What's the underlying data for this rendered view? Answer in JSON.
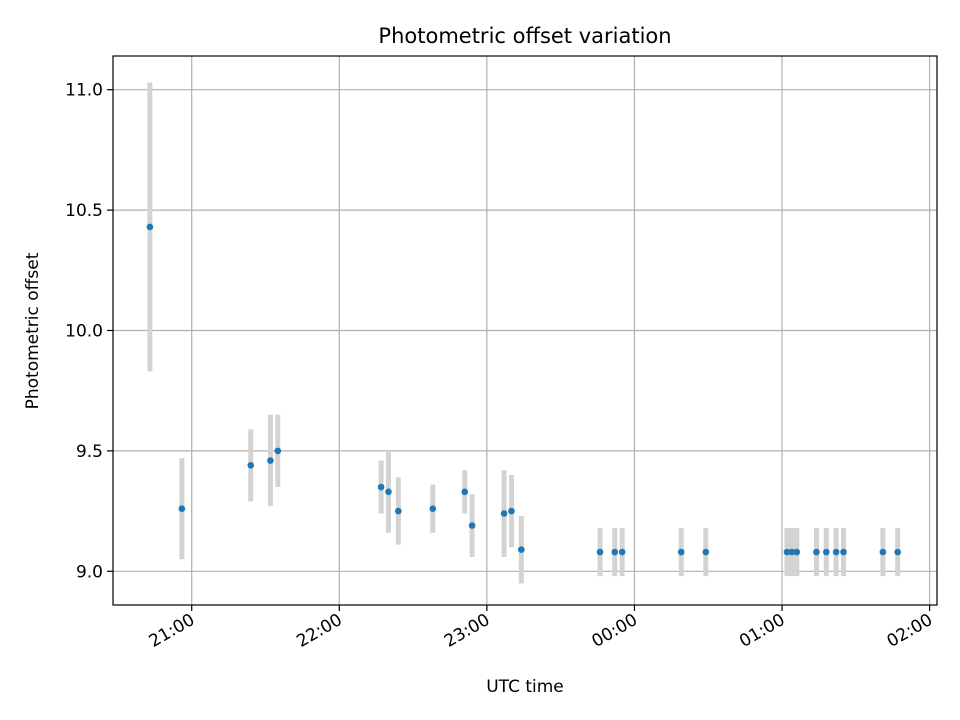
{
  "chart_data": {
    "type": "scatter",
    "title": "Photometric offset variation",
    "xlabel": "UTC time",
    "ylabel": "Photometric offset",
    "x_axis_type": "time",
    "x_reference_date": "",
    "xlim": [
      "20:28",
      "26:03"
    ],
    "ylim": [
      8.86,
      11.14
    ],
    "x_ticks": [
      "21:00",
      "22:00",
      "23:00",
      "00:00",
      "01:00",
      "02:00"
    ],
    "y_ticks": [
      9.0,
      9.5,
      10.0,
      10.5,
      11.0
    ],
    "y_tick_labels": [
      "9.0",
      "9.5",
      "10.0",
      "10.5",
      "11.0"
    ],
    "grid": true,
    "point_color": "#1f77b4",
    "errorbar_color": "#d3d3d3",
    "series": [
      {
        "points": [
          {
            "t": "20:43",
            "y": 10.43,
            "err": 0.6
          },
          {
            "t": "20:56",
            "y": 9.26,
            "err": 0.21
          },
          {
            "t": "21:24",
            "y": 9.44,
            "err": 0.15
          },
          {
            "t": "21:32",
            "y": 9.46,
            "err": 0.19
          },
          {
            "t": "21:35",
            "y": 9.5,
            "err": 0.15
          },
          {
            "t": "22:17",
            "y": 9.35,
            "err": 0.11
          },
          {
            "t": "22:20",
            "y": 9.33,
            "err": 0.17
          },
          {
            "t": "22:24",
            "y": 9.25,
            "err": 0.14
          },
          {
            "t": "22:38",
            "y": 9.26,
            "err": 0.1
          },
          {
            "t": "22:51",
            "y": 9.33,
            "err": 0.09
          },
          {
            "t": "22:54",
            "y": 9.19,
            "err": 0.13
          },
          {
            "t": "23:07",
            "y": 9.24,
            "err": 0.18
          },
          {
            "t": "23:10",
            "y": 9.25,
            "err": 0.15
          },
          {
            "t": "23:14",
            "y": 9.09,
            "err": 0.14
          },
          {
            "t": "23:46",
            "y": 9.08,
            "err": 0.1
          },
          {
            "t": "23:52",
            "y": 9.08,
            "err": 0.1
          },
          {
            "t": "23:55",
            "y": 9.08,
            "err": 0.1
          },
          {
            "t": "24:19",
            "y": 9.08,
            "err": 0.1
          },
          {
            "t": "24:29",
            "y": 9.08,
            "err": 0.1
          },
          {
            "t": "25:02",
            "y": 9.08,
            "err": 0.1
          },
          {
            "t": "25:04",
            "y": 9.08,
            "err": 0.1
          },
          {
            "t": "25:06",
            "y": 9.08,
            "err": 0.1
          },
          {
            "t": "25:14",
            "y": 9.08,
            "err": 0.1
          },
          {
            "t": "25:18",
            "y": 9.08,
            "err": 0.1
          },
          {
            "t": "25:22",
            "y": 9.08,
            "err": 0.1
          },
          {
            "t": "25:25",
            "y": 9.08,
            "err": 0.1
          },
          {
            "t": "25:41",
            "y": 9.08,
            "err": 0.1
          },
          {
            "t": "25:47",
            "y": 9.08,
            "err": 0.1
          }
        ]
      }
    ]
  }
}
